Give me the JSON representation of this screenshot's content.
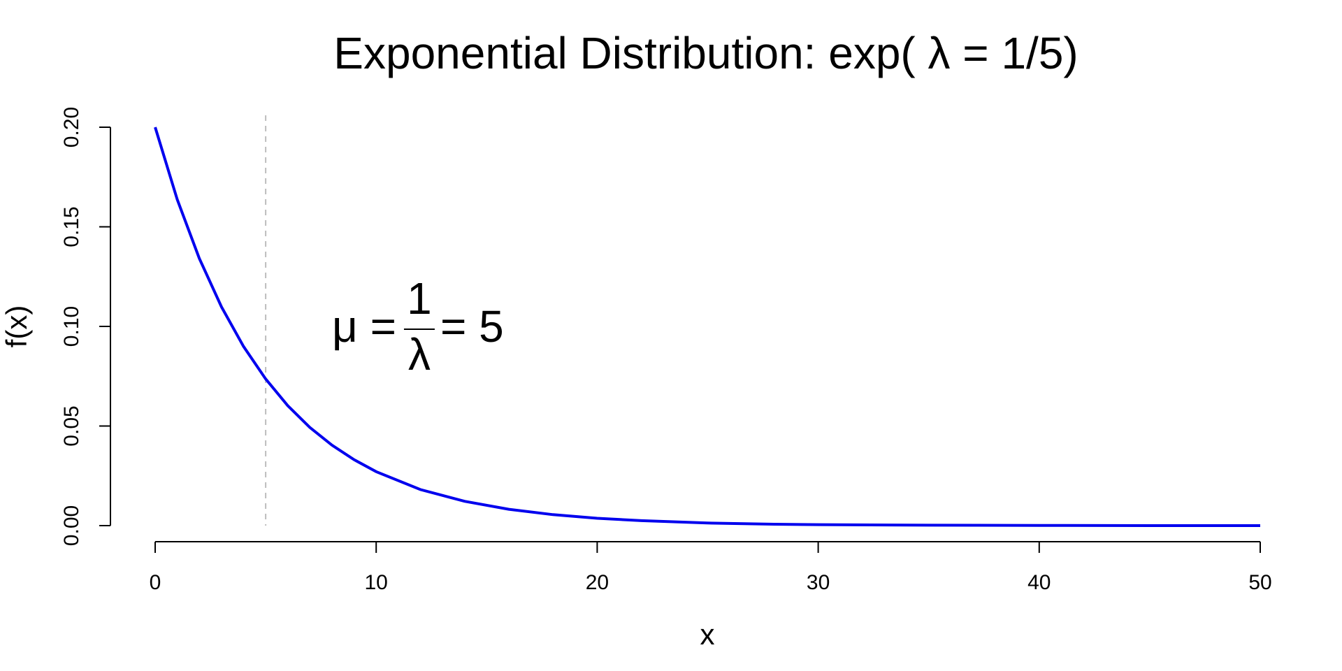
{
  "chart_data": {
    "type": "line",
    "title": "Exponential Distribution: exp( λ = 1/5)",
    "xlabel": "x",
    "ylabel": "f(x)",
    "xlim": [
      0,
      50
    ],
    "ylim": [
      0,
      0.2
    ],
    "x_ticks": [
      0,
      10,
      20,
      30,
      40,
      50
    ],
    "x_tick_labels": [
      "0",
      "10",
      "20",
      "30",
      "40",
      "50"
    ],
    "y_ticks": [
      0,
      0.05,
      0.1,
      0.15,
      0.2
    ],
    "y_tick_labels": [
      "0.00",
      "0.05",
      "0.10",
      "0.15",
      "0.20"
    ],
    "grid": false,
    "series": [
      {
        "color": "#0000ee",
        "function": "dexp(x, rate = 0.2)",
        "x": [
          0,
          1,
          2,
          3,
          4,
          5,
          6,
          7,
          8,
          9,
          10,
          12,
          14,
          16,
          18,
          20,
          22,
          25,
          28,
          30,
          35,
          40,
          45,
          50
        ],
        "y": [
          0.2,
          0.1637,
          0.1341,
          0.1098,
          0.0899,
          0.0736,
          0.0602,
          0.0493,
          0.0404,
          0.0331,
          0.0271,
          0.0181,
          0.0122,
          0.0082,
          0.0055,
          0.0037,
          0.0025,
          0.0013,
          0.0007,
          0.0005,
          0.0002,
          0.0001,
          0.0,
          0.0
        ]
      }
    ],
    "reference_line": {
      "x": 5,
      "color": "#bdbdbd",
      "style": "dashed"
    },
    "annotation": {
      "lhs": "μ =",
      "numerator": "1",
      "denominator": "λ",
      "rhs": "= 5",
      "at": {
        "x": 8,
        "y": 0.1
      }
    }
  }
}
